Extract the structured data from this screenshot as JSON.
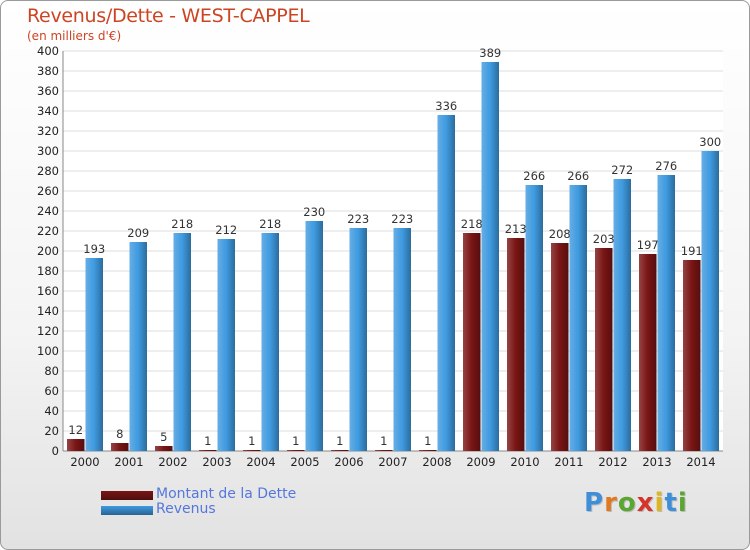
{
  "title": "Revenus/Dette - WEST-CAPPEL",
  "subtitle": "(en milliers d'€)",
  "chart_data": {
    "type": "bar",
    "title": "Revenus/Dette - WEST-CAPPEL",
    "subtitle": "(en milliers d'€)",
    "xlabel": "",
    "ylabel": "(en milliers d'€)",
    "ylim": [
      0,
      400
    ],
    "yticks": [
      0,
      20,
      40,
      60,
      80,
      100,
      120,
      140,
      160,
      180,
      200,
      220,
      240,
      260,
      280,
      300,
      320,
      340,
      360,
      380,
      400
    ],
    "grid": true,
    "categories": [
      "2000",
      "2001",
      "2002",
      "2003",
      "2004",
      "2005",
      "2006",
      "2007",
      "2008",
      "2009",
      "2010",
      "2011",
      "2012",
      "2013",
      "2014"
    ],
    "series": [
      {
        "name": "Montant de la Dette",
        "color": "#7a1515",
        "values": [
          12,
          8,
          5,
          1,
          1,
          1,
          1,
          1,
          1,
          218,
          213,
          208,
          203,
          197,
          191
        ]
      },
      {
        "name": "Revenus",
        "color": "#3f9ae0",
        "values": [
          193,
          209,
          218,
          212,
          218,
          230,
          223,
          223,
          336,
          389,
          266,
          266,
          272,
          276,
          300
        ]
      }
    ],
    "legend_position": "bottom-left"
  },
  "legend": [
    {
      "label": "Montant de la Dette",
      "color": "#7a1515"
    },
    {
      "label": "Revenus",
      "color": "#3f9ae0"
    }
  ],
  "logo": {
    "letters": [
      "P",
      "r",
      "o",
      "x",
      "i",
      "t",
      "i"
    ],
    "colors": [
      "#3f8fd8",
      "#e07a1f",
      "#5aa631",
      "#d6332a",
      "#e0b51f",
      "#3f8fd8",
      "#5aa631"
    ]
  }
}
